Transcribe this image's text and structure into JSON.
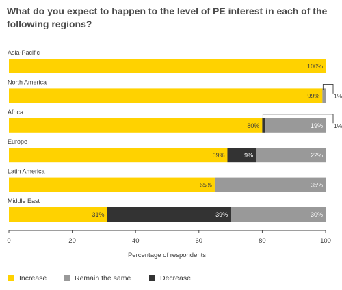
{
  "title": "What do you expect to happen to the level of PE interest in each of the following regions?",
  "chart_data": {
    "type": "bar",
    "orientation": "horizontal",
    "stacked": true,
    "title": "What do you expect to happen to the level of PE interest in each of the following regions?",
    "xlabel": "Percentage of respondents",
    "ylabel": "",
    "xlim": [
      0,
      100
    ],
    "x_ticks": [
      0,
      20,
      40,
      60,
      80,
      100
    ],
    "categories": [
      "Asia-Pacific",
      "North America",
      "Africa",
      "Europe",
      "Latin America",
      "Middle East"
    ],
    "series": [
      {
        "name": "Increase",
        "color": "#ffd200",
        "values": [
          100,
          99,
          80,
          69,
          65,
          31
        ]
      },
      {
        "name": "Decrease",
        "color": "#333333",
        "values": [
          0,
          0,
          1,
          9,
          0,
          39
        ]
      },
      {
        "name": "Remain the same",
        "color": "#999999",
        "values": [
          0,
          1,
          19,
          22,
          35,
          30
        ]
      }
    ],
    "data_labels": [
      [
        "100%",
        "",
        ""
      ],
      [
        "99%",
        "",
        ""
      ],
      [
        "80%",
        "",
        "19%"
      ],
      [
        "69%",
        "9%",
        "22%"
      ],
      [
        "65%",
        "",
        "35%"
      ],
      [
        "31%",
        "39%",
        "30%"
      ]
    ],
    "callouts": [
      {
        "category": "North America",
        "label": "1%"
      },
      {
        "category": "Africa",
        "label": "1%"
      }
    ],
    "legend": {
      "placement": "bottom",
      "items": [
        {
          "label": "Increase",
          "color": "#ffd200"
        },
        {
          "label": "Remain the same",
          "color": "#999999"
        },
        {
          "label": "Decrease",
          "color": "#333333"
        }
      ]
    },
    "grid": false
  }
}
